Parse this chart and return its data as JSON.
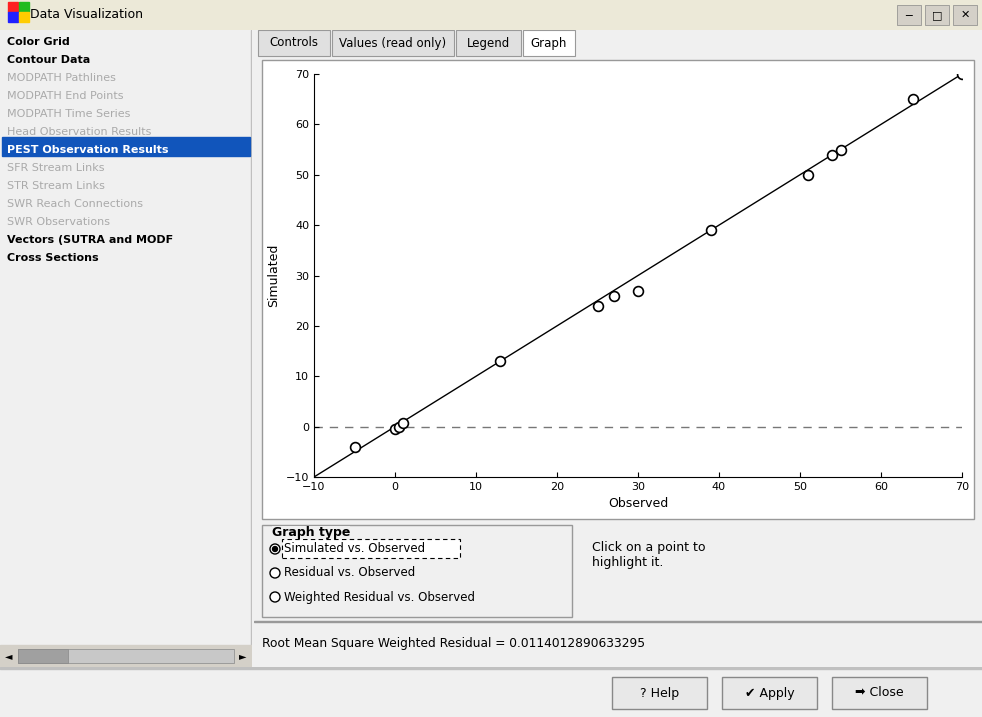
{
  "observed": [
    -5,
    0,
    0.5,
    1,
    13,
    25,
    27,
    30,
    39,
    51,
    54,
    55,
    64,
    70
  ],
  "simulated": [
    -4,
    -0.5,
    0,
    0.8,
    13,
    24,
    26,
    27,
    39,
    50,
    54,
    55,
    65,
    70
  ],
  "xlim": [
    -10,
    70
  ],
  "ylim": [
    -10,
    70
  ],
  "xlabel": "Observed",
  "ylabel": "Simulated",
  "xticks": [
    -10,
    0,
    10,
    20,
    30,
    40,
    50,
    60,
    70
  ],
  "yticks": [
    -10,
    0,
    10,
    20,
    30,
    40,
    50,
    60,
    70
  ],
  "left_menu": [
    "Color Grid",
    "Contour Data",
    "MODPATH Pathlines",
    "MODPATH End Points",
    "MODPATH Time Series",
    "Head Observation Results",
    "PEST Observation Results",
    "SFR Stream Links",
    "STR Stream Links",
    "SWR Reach Connections",
    "SWR Observations",
    "Vectors (SUTRA and MODF",
    "Cross Sections"
  ],
  "selected_menu_item": "PEST Observation Results",
  "disabled_items": [
    "MODPATH Pathlines",
    "MODPATH End Points",
    "MODPATH Time Series",
    "Head Observation Results",
    "SFR Stream Links",
    "STR Stream Links",
    "SWR Reach Connections",
    "SWR Observations"
  ],
  "bold_items": [
    "Color Grid",
    "Contour Data",
    "PEST Observation Results",
    "Vectors (SUTRA and MODF",
    "Cross Sections"
  ],
  "tab_labels": [
    "Controls",
    "Values (read only)",
    "Legend",
    "Graph"
  ],
  "active_tab": "Graph",
  "graph_type_options": [
    "Simulated vs. Observed",
    "Residual vs. Observed",
    "Weighted Residual vs. Observed"
  ],
  "selected_graph_type_idx": 0,
  "rms_text": "Root Mean Square Weighted Residual = 0.0114012890633295",
  "click_text": "Click on a point to\nhighlight it.",
  "title_bar": "Data Visualization",
  "window_bg": "#f0f0f0",
  "plot_bg": "#ffffff",
  "menu_selected_bg": "#1155bb",
  "menu_selected_fg": "#ffffff",
  "menu_disabled_fg": "#aaaaaa",
  "border_color": "#999999",
  "tab_active_bg": "#ffffff",
  "tab_inactive_bg": "#e0e0e0",
  "title_bar_bg": "#f0f0f0"
}
